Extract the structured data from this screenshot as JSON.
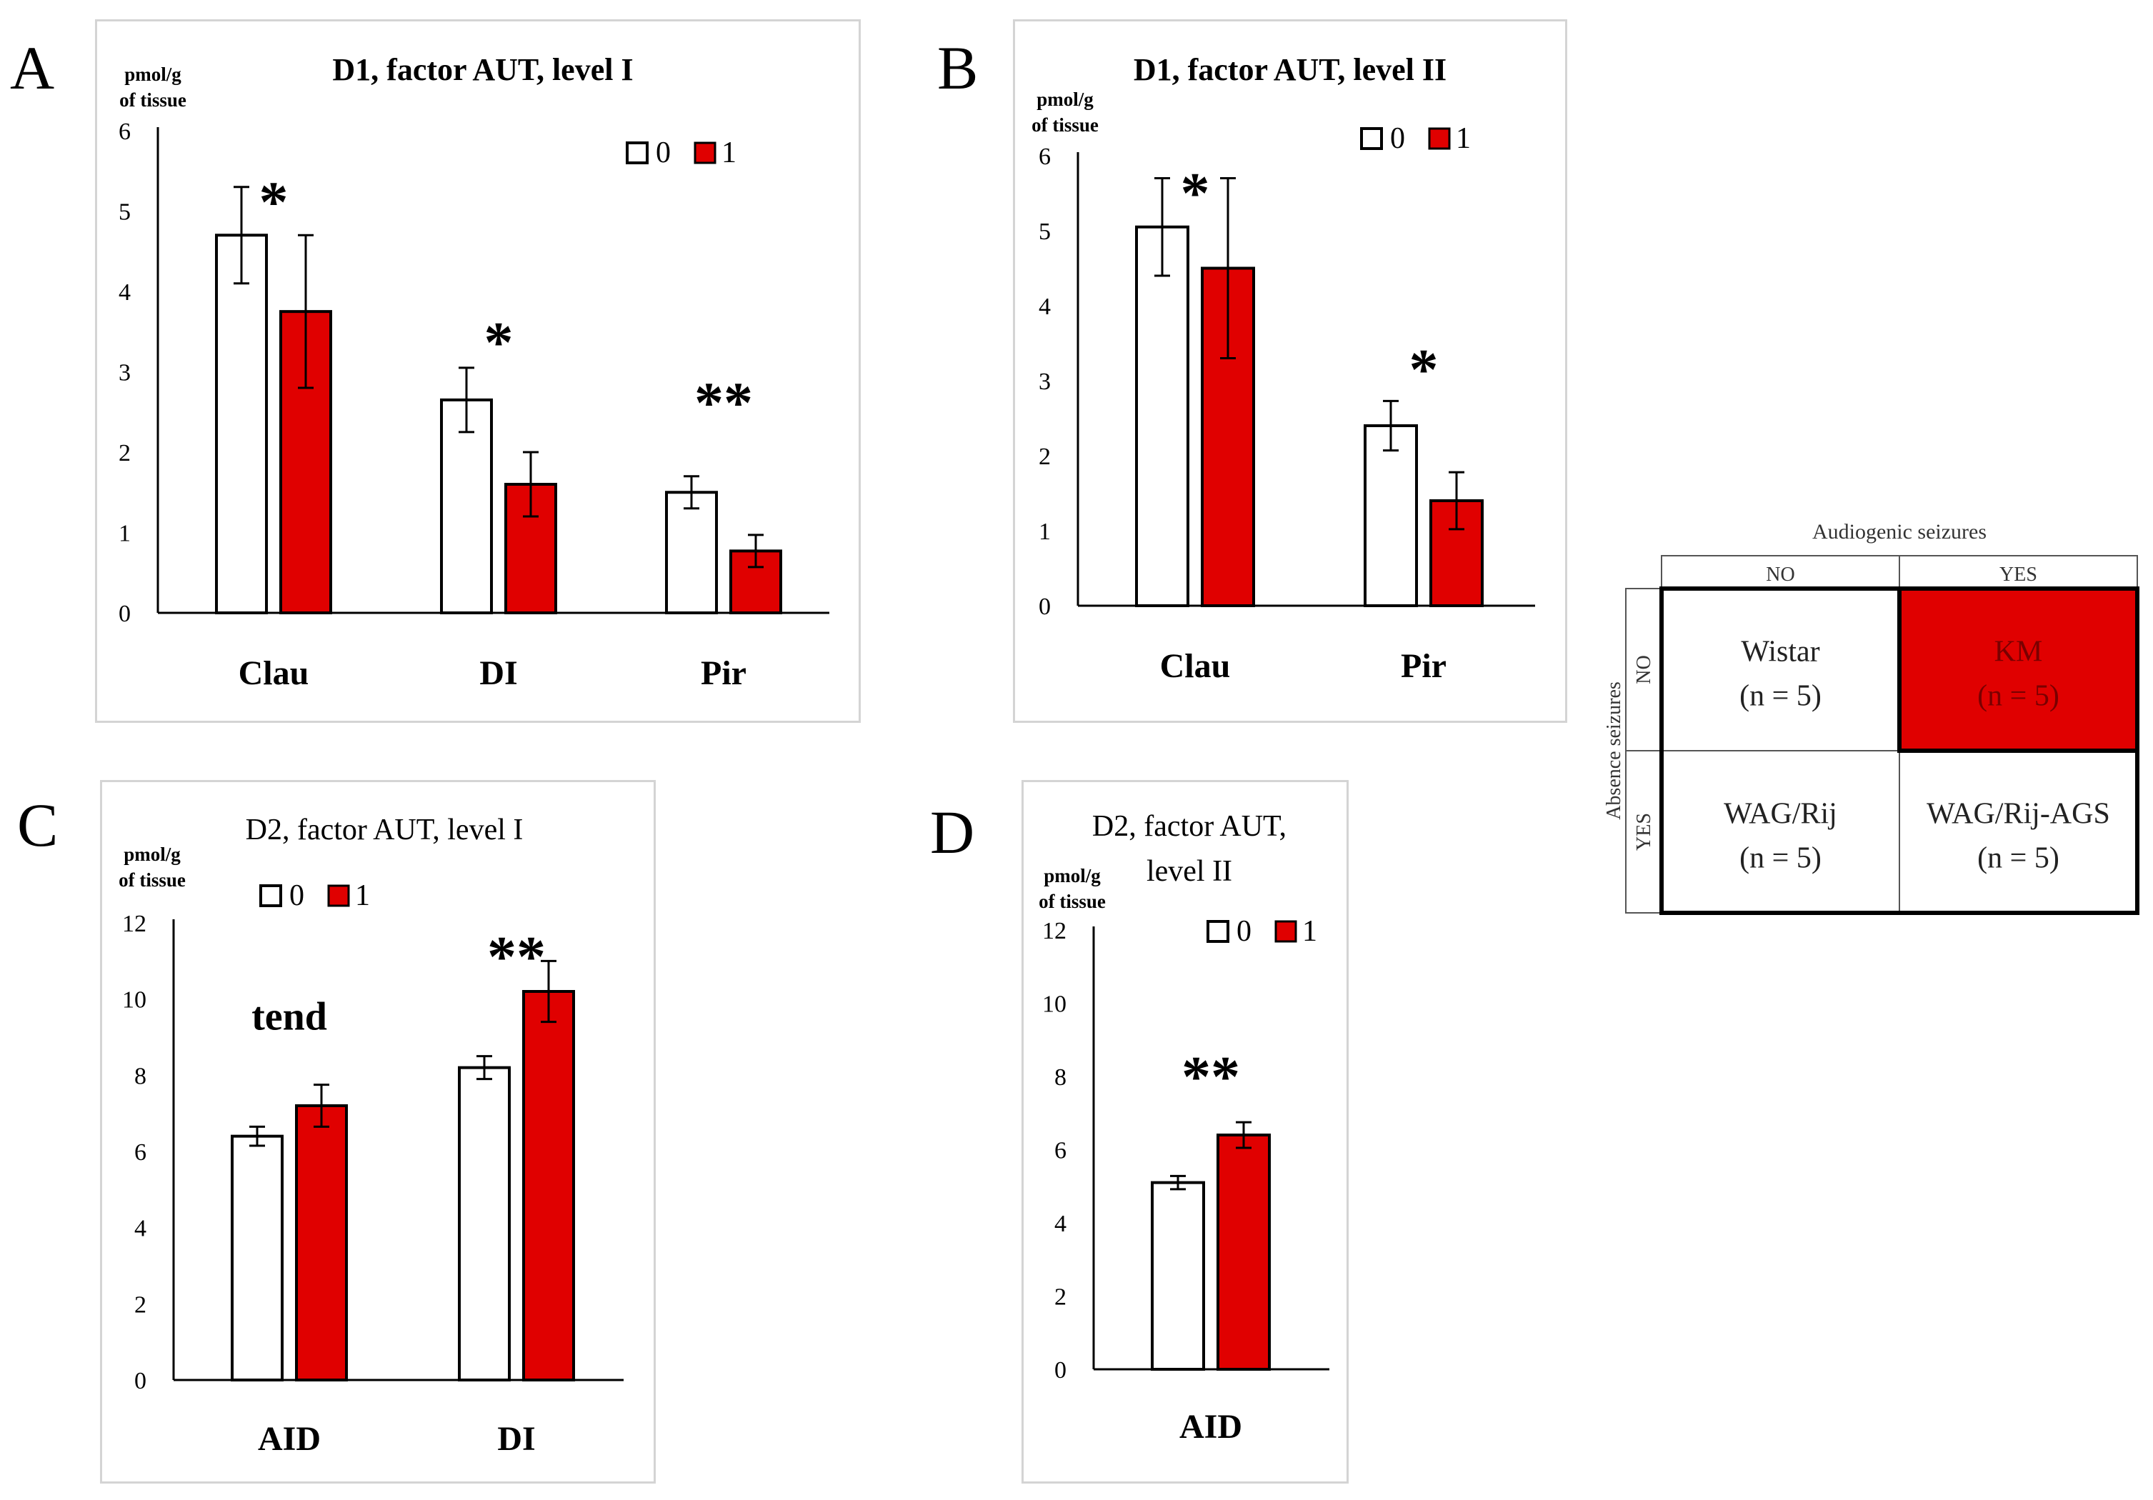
{
  "colors": {
    "group0": "#ffffff",
    "group1": "#e00000",
    "axis": "#000000",
    "frame": "#d4d4d4",
    "km_cell": "#e00000"
  },
  "legend_labels": [
    "0",
    "1"
  ],
  "chart_data": [
    {
      "panel": "A",
      "type": "bar",
      "title": "D1, factor AUT, level I",
      "title_bold": true,
      "unit_line1": "pmol/g",
      "unit_line2": "of tissue",
      "ylim": [
        0,
        6
      ],
      "yticks": [
        0,
        1,
        2,
        3,
        4,
        5,
        6
      ],
      "categories": [
        "Clau",
        "DI",
        "Pir"
      ],
      "series": [
        {
          "name": "0",
          "values": [
            4.7,
            2.65,
            1.5
          ],
          "errors": [
            0.6,
            0.4,
            0.2
          ]
        },
        {
          "name": "1",
          "values": [
            3.75,
            1.6,
            0.77
          ],
          "errors": [
            0.95,
            0.4,
            0.2
          ]
        }
      ],
      "annotations": [
        {
          "text": "*",
          "category": 0,
          "y": 5.3
        },
        {
          "text": "*",
          "category": 1,
          "y": 3.55
        },
        {
          "text": "**",
          "category": 2,
          "y": 2.8
        }
      ]
    },
    {
      "panel": "B",
      "type": "bar",
      "title": "D1, factor AUT, level II",
      "title_bold": true,
      "unit_line1": "pmol/g",
      "unit_line2": "of tissue",
      "ylim": [
        0,
        6
      ],
      "yticks": [
        0,
        1,
        2,
        3,
        4,
        5,
        6
      ],
      "categories": [
        "Clau",
        "Pir"
      ],
      "series": [
        {
          "name": "0",
          "values": [
            5.05,
            2.4
          ],
          "errors": [
            0.65,
            0.33
          ]
        },
        {
          "name": "1",
          "values": [
            4.5,
            1.4
          ],
          "errors": [
            1.2,
            0.38
          ]
        }
      ],
      "annotations": [
        {
          "text": "*",
          "category": 0,
          "y": 5.7
        },
        {
          "text": "*",
          "category": 1,
          "y": 3.35
        }
      ]
    },
    {
      "panel": "C",
      "type": "bar",
      "title": "D2, factor AUT, level I",
      "title_bold": false,
      "unit_line1": "pmol/g",
      "unit_line2": "of tissue",
      "ylim": [
        0,
        12
      ],
      "yticks": [
        0,
        2,
        4,
        6,
        8,
        10,
        12
      ],
      "categories": [
        "AID",
        "DI"
      ],
      "series": [
        {
          "name": "0",
          "values": [
            6.4,
            8.2
          ],
          "errors": [
            0.25,
            0.3
          ]
        },
        {
          "name": "1",
          "values": [
            7.2,
            10.2
          ],
          "errors": [
            0.55,
            0.8
          ]
        }
      ],
      "annotations": [
        {
          "text": "tend",
          "category": 0,
          "y": 9.2
        },
        {
          "text": "**",
          "category": 1,
          "y": 11.5
        }
      ]
    },
    {
      "panel": "D",
      "type": "bar",
      "title": "D2, factor AUT,",
      "title_line2": "level II",
      "title_bold": false,
      "unit_line1": "pmol/g",
      "unit_line2": "of tissue",
      "ylim": [
        0,
        12
      ],
      "yticks": [
        0,
        2,
        4,
        6,
        8,
        10,
        12
      ],
      "categories": [
        "AID"
      ],
      "series": [
        {
          "name": "0",
          "values": [
            5.1
          ],
          "errors": [
            0.18
          ]
        },
        {
          "name": "1",
          "values": [
            6.4
          ],
          "errors": [
            0.35
          ]
        }
      ],
      "annotations": [
        {
          "text": "**",
          "category": 0,
          "y": 8.4
        }
      ]
    }
  ],
  "design_table": {
    "col_header": "Audiogenic seizures",
    "row_header": "Absence seizures",
    "col_labels": [
      "NO",
      "YES"
    ],
    "row_labels": [
      "NO",
      "YES"
    ],
    "cells": [
      {
        "name": "Wistar",
        "n": "(n = 5)"
      },
      {
        "name": "KM",
        "n": "(n = 5)"
      },
      {
        "name": "WAG/Rij",
        "n": "(n = 5)"
      },
      {
        "name": "WAG/Rij-AGS",
        "n": "(n = 5)"
      }
    ]
  }
}
